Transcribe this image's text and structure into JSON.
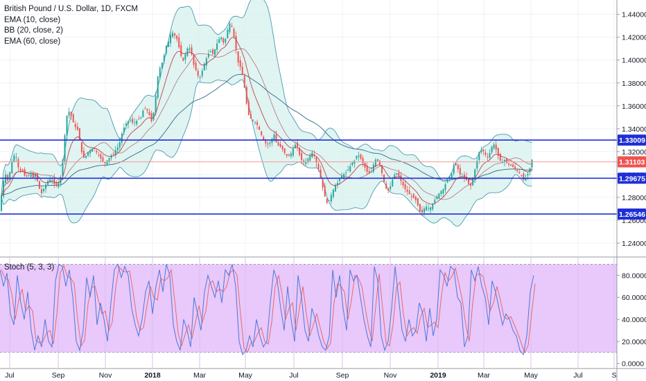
{
  "legend": {
    "title": "British Pound / U.S. Dollar, 1D, FXCM",
    "indicators": [
      "EMA (10, close)",
      "BB (20, close, 2)",
      "EMA (60, close)"
    ],
    "stoch": "Stoch (5, 3, 3)"
  },
  "colors": {
    "up": "#26a69a",
    "down": "#ef5350",
    "bb_fill": "#d6f0ee",
    "bb_line": "#4a9ab0",
    "ema10": "#c0404a",
    "ema60": "#2f6a88",
    "hline": "#1f2fd6",
    "price_line": "#f39a9a",
    "stoch_bg": "#e9c8fb",
    "stoch_k": "#4a78d8",
    "stoch_d": "#e66a6a"
  },
  "chart_data": [
    {
      "type": "candlestick",
      "pane": "price",
      "symbol": "GBPUSD",
      "timeframe": "1D",
      "y_range": [
        1.2285,
        1.4525
      ],
      "y_ticks": [
        "1.24000",
        "1.26000",
        "1.28000",
        "1.30000",
        "1.32000",
        "1.34000",
        "1.36000",
        "1.38000",
        "1.40000",
        "1.42000",
        "1.44000"
      ],
      "x_ticks": [
        "Jul",
        "Sep",
        "Nov",
        "2018",
        "Mar",
        "May",
        "Jul",
        "Sep",
        "Nov",
        "2019",
        "Mar",
        "May",
        "Jul",
        "S"
      ],
      "close_path": [
        [
          0,
          1.268
        ],
        [
          4,
          1.29
        ],
        [
          8,
          1.301
        ],
        [
          12,
          1.294
        ],
        [
          16,
          1.306
        ],
        [
          20,
          1.317
        ],
        [
          24,
          1.315
        ],
        [
          28,
          1.303
        ],
        [
          32,
          1.304
        ],
        [
          36,
          1.299
        ],
        [
          40,
          1.298
        ],
        [
          44,
          1.301
        ],
        [
          48,
          1.297
        ],
        [
          52,
          1.301
        ],
        [
          56,
          1.29
        ],
        [
          60,
          1.283
        ],
        [
          64,
          1.288
        ],
        [
          68,
          1.293
        ],
        [
          72,
          1.296
        ],
        [
          76,
          1.295
        ],
        [
          80,
          1.29
        ],
        [
          84,
          1.292
        ],
        [
          88,
          1.298
        ],
        [
          92,
          1.318
        ],
        [
          96,
          1.35
        ],
        [
          100,
          1.355
        ],
        [
          104,
          1.35
        ],
        [
          108,
          1.342
        ],
        [
          112,
          1.34
        ],
        [
          116,
          1.328
        ],
        [
          120,
          1.314
        ],
        [
          124,
          1.316
        ],
        [
          128,
          1.32
        ],
        [
          132,
          1.322
        ],
        [
          136,
          1.323
        ],
        [
          140,
          1.319
        ],
        [
          144,
          1.316
        ],
        [
          148,
          1.312
        ],
        [
          152,
          1.31
        ],
        [
          156,
          1.313
        ],
        [
          160,
          1.316
        ],
        [
          164,
          1.318
        ],
        [
          168,
          1.322
        ],
        [
          172,
          1.325
        ],
        [
          176,
          1.335
        ],
        [
          180,
          1.342
        ],
        [
          184,
          1.346
        ],
        [
          188,
          1.348
        ],
        [
          192,
          1.345
        ],
        [
          196,
          1.346
        ],
        [
          200,
          1.348
        ],
        [
          204,
          1.35
        ],
        [
          208,
          1.358
        ],
        [
          212,
          1.357
        ],
        [
          216,
          1.352
        ],
        [
          220,
          1.345
        ],
        [
          224,
          1.362
        ],
        [
          228,
          1.385
        ],
        [
          232,
          1.395
        ],
        [
          236,
          1.4
        ],
        [
          240,
          1.412
        ],
        [
          244,
          1.417
        ],
        [
          248,
          1.425
        ],
        [
          252,
          1.422
        ],
        [
          256,
          1.418
        ],
        [
          260,
          1.408
        ],
        [
          264,
          1.398
        ],
        [
          268,
          1.405
        ],
        [
          272,
          1.412
        ],
        [
          276,
          1.408
        ],
        [
          280,
          1.396
        ],
        [
          284,
          1.39
        ],
        [
          288,
          1.383
        ],
        [
          292,
          1.39
        ],
        [
          296,
          1.398
        ],
        [
          300,
          1.404
        ],
        [
          304,
          1.408
        ],
        [
          308,
          1.405
        ],
        [
          312,
          1.412
        ],
        [
          316,
          1.418
        ],
        [
          320,
          1.42
        ],
        [
          324,
          1.413
        ],
        [
          328,
          1.425
        ],
        [
          332,
          1.432
        ],
        [
          336,
          1.428
        ],
        [
          340,
          1.413
        ],
        [
          344,
          1.398
        ],
        [
          348,
          1.393
        ],
        [
          352,
          1.382
        ],
        [
          356,
          1.363
        ],
        [
          360,
          1.35
        ],
        [
          364,
          1.348
        ],
        [
          368,
          1.346
        ],
        [
          372,
          1.343
        ],
        [
          376,
          1.337
        ],
        [
          380,
          1.331
        ],
        [
          384,
          1.327
        ],
        [
          388,
          1.326
        ],
        [
          392,
          1.33
        ],
        [
          396,
          1.335
        ],
        [
          400,
          1.326
        ],
        [
          404,
          1.325
        ],
        [
          408,
          1.322
        ],
        [
          412,
          1.318
        ],
        [
          416,
          1.315
        ],
        [
          420,
          1.318
        ],
        [
          424,
          1.323
        ],
        [
          428,
          1.328
        ],
        [
          432,
          1.318
        ],
        [
          436,
          1.312
        ],
        [
          440,
          1.31
        ],
        [
          444,
          1.313
        ],
        [
          448,
          1.317
        ],
        [
          452,
          1.32
        ],
        [
          456,
          1.312
        ],
        [
          460,
          1.305
        ],
        [
          464,
          1.295
        ],
        [
          468,
          1.283
        ],
        [
          472,
          1.275
        ],
        [
          476,
          1.278
        ],
        [
          480,
          1.285
        ],
        [
          484,
          1.29
        ],
        [
          488,
          1.293
        ],
        [
          492,
          1.298
        ],
        [
          496,
          1.3
        ],
        [
          500,
          1.302
        ],
        [
          504,
          1.305
        ],
        [
          508,
          1.31
        ],
        [
          512,
          1.312
        ],
        [
          516,
          1.318
        ],
        [
          520,
          1.315
        ],
        [
          524,
          1.31
        ],
        [
          528,
          1.305
        ],
        [
          532,
          1.3
        ],
        [
          536,
          1.302
        ],
        [
          540,
          1.31
        ],
        [
          544,
          1.315
        ],
        [
          548,
          1.31
        ],
        [
          552,
          1.3
        ],
        [
          556,
          1.29
        ],
        [
          560,
          1.285
        ],
        [
          564,
          1.29
        ],
        [
          568,
          1.298
        ],
        [
          572,
          1.302
        ],
        [
          576,
          1.298
        ],
        [
          580,
          1.293
        ],
        [
          584,
          1.288
        ],
        [
          588,
          1.285
        ],
        [
          592,
          1.282
        ],
        [
          596,
          1.28
        ],
        [
          600,
          1.278
        ],
        [
          604,
          1.272
        ],
        [
          608,
          1.265
        ],
        [
          612,
          1.27
        ],
        [
          616,
          1.272
        ],
        [
          620,
          1.27
        ],
        [
          624,
          1.273
        ],
        [
          628,
          1.278
        ],
        [
          632,
          1.282
        ],
        [
          636,
          1.285
        ],
        [
          640,
          1.287
        ],
        [
          644,
          1.293
        ],
        [
          648,
          1.297
        ],
        [
          652,
          1.3
        ],
        [
          656,
          1.31
        ],
        [
          660,
          1.307
        ],
        [
          664,
          1.3
        ],
        [
          668,
          1.298
        ],
        [
          672,
          1.297
        ],
        [
          676,
          1.292
        ],
        [
          680,
          1.29
        ],
        [
          684,
          1.3
        ],
        [
          688,
          1.31
        ],
        [
          692,
          1.32
        ],
        [
          696,
          1.322
        ],
        [
          700,
          1.318
        ],
        [
          704,
          1.315
        ],
        [
          708,
          1.32
        ],
        [
          712,
          1.328
        ],
        [
          716,
          1.322
        ],
        [
          720,
          1.315
        ],
        [
          724,
          1.31
        ],
        [
          728,
          1.313
        ],
        [
          732,
          1.31
        ],
        [
          736,
          1.308
        ],
        [
          740,
          1.307
        ],
        [
          744,
          1.305
        ],
        [
          748,
          1.302
        ],
        [
          752,
          1.3
        ],
        [
          756,
          1.295
        ],
        [
          760,
          1.298
        ],
        [
          764,
          1.303
        ],
        [
          768,
          1.313
        ]
      ],
      "horizontal_levels": [
        1.33009,
        1.29675,
        1.26546
      ],
      "last_price": 1.31103,
      "price_labels": [
        "1.33009",
        "1.31103",
        "1.29675",
        "1.26546"
      ]
    },
    {
      "type": "line",
      "pane": "stochastic",
      "name": "Stoch (5, 3, 3)",
      "y_range": [
        -4,
        96
      ],
      "y_ticks": [
        "0.0000",
        "20.0000",
        "40.0000",
        "60.0000",
        "80.0000"
      ],
      "bands": [
        10,
        90
      ],
      "k_path": [
        [
          0,
          85
        ],
        [
          5,
          70
        ],
        [
          10,
          82
        ],
        [
          15,
          45
        ],
        [
          20,
          35
        ],
        [
          25,
          80
        ],
        [
          30,
          55
        ],
        [
          35,
          40
        ],
        [
          40,
          65
        ],
        [
          45,
          30
        ],
        [
          50,
          12
        ],
        [
          55,
          25
        ],
        [
          60,
          15
        ],
        [
          65,
          40
        ],
        [
          70,
          20
        ],
        [
          75,
          15
        ],
        [
          80,
          75
        ],
        [
          85,
          90
        ],
        [
          90,
          88
        ],
        [
          95,
          70
        ],
        [
          100,
          85
        ],
        [
          105,
          60
        ],
        [
          110,
          20
        ],
        [
          115,
          12
        ],
        [
          120,
          30
        ],
        [
          125,
          78
        ],
        [
          130,
          60
        ],
        [
          135,
          80
        ],
        [
          140,
          35
        ],
        [
          145,
          55
        ],
        [
          150,
          40
        ],
        [
          155,
          20
        ],
        [
          160,
          55
        ],
        [
          165,
          85
        ],
        [
          170,
          90
        ],
        [
          175,
          78
        ],
        [
          180,
          88
        ],
        [
          185,
          80
        ],
        [
          190,
          50
        ],
        [
          195,
          35
        ],
        [
          200,
          25
        ],
        [
          205,
          40
        ],
        [
          210,
          65
        ],
        [
          215,
          75
        ],
        [
          220,
          45
        ],
        [
          225,
          70
        ],
        [
          230,
          85
        ],
        [
          235,
          65
        ],
        [
          240,
          90
        ],
        [
          245,
          80
        ],
        [
          250,
          35
        ],
        [
          255,
          20
        ],
        [
          260,
          12
        ],
        [
          265,
          40
        ],
        [
          270,
          30
        ],
        [
          275,
          15
        ],
        [
          280,
          60
        ],
        [
          285,
          45
        ],
        [
          290,
          30
        ],
        [
          295,
          65
        ],
        [
          300,
          80
        ],
        [
          305,
          70
        ],
        [
          310,
          60
        ],
        [
          315,
          75
        ],
        [
          320,
          55
        ],
        [
          325,
          85
        ],
        [
          330,
          80
        ],
        [
          335,
          90
        ],
        [
          340,
          70
        ],
        [
          345,
          20
        ],
        [
          350,
          8
        ],
        [
          355,
          12
        ],
        [
          360,
          25
        ],
        [
          365,
          15
        ],
        [
          370,
          40
        ],
        [
          375,
          25
        ],
        [
          380,
          15
        ],
        [
          385,
          20
        ],
        [
          390,
          55
        ],
        [
          395,
          85
        ],
        [
          400,
          75
        ],
        [
          405,
          50
        ],
        [
          410,
          30
        ],
        [
          415,
          70
        ],
        [
          420,
          40
        ],
        [
          425,
          20
        ],
        [
          430,
          80
        ],
        [
          435,
          60
        ],
        [
          440,
          30
        ],
        [
          445,
          20
        ],
        [
          450,
          50
        ],
        [
          455,
          40
        ],
        [
          460,
          25
        ],
        [
          465,
          15
        ],
        [
          470,
          12
        ],
        [
          475,
          25
        ],
        [
          480,
          85
        ],
        [
          485,
          60
        ],
        [
          490,
          80
        ],
        [
          495,
          50
        ],
        [
          500,
          30
        ],
        [
          505,
          85
        ],
        [
          510,
          75
        ],
        [
          515,
          80
        ],
        [
          520,
          60
        ],
        [
          525,
          40
        ],
        [
          530,
          25
        ],
        [
          535,
          15
        ],
        [
          540,
          88
        ],
        [
          545,
          75
        ],
        [
          550,
          25
        ],
        [
          555,
          12
        ],
        [
          560,
          20
        ],
        [
          565,
          50
        ],
        [
          570,
          88
        ],
        [
          575,
          60
        ],
        [
          580,
          30
        ],
        [
          585,
          20
        ],
        [
          590,
          40
        ],
        [
          595,
          25
        ],
        [
          600,
          30
        ],
        [
          605,
          55
        ],
        [
          610,
          45
        ],
        [
          615,
          20
        ],
        [
          620,
          50
        ],
        [
          625,
          25
        ],
        [
          630,
          40
        ],
        [
          635,
          85
        ],
        [
          640,
          80
        ],
        [
          645,
          70
        ],
        [
          650,
          88
        ],
        [
          655,
          85
        ],
        [
          660,
          60
        ],
        [
          665,
          55
        ],
        [
          670,
          15
        ],
        [
          675,
          25
        ],
        [
          680,
          85
        ],
        [
          685,
          75
        ],
        [
          690,
          88
        ],
        [
          695,
          70
        ],
        [
          700,
          60
        ],
        [
          705,
          35
        ],
        [
          710,
          75
        ],
        [
          715,
          65
        ],
        [
          720,
          50
        ],
        [
          725,
          35
        ],
        [
          730,
          45
        ],
        [
          735,
          40
        ],
        [
          740,
          30
        ],
        [
          745,
          25
        ],
        [
          750,
          12
        ],
        [
          755,
          8
        ],
        [
          760,
          25
        ],
        [
          765,
          65
        ],
        [
          770,
          80
        ]
      ]
    }
  ]
}
